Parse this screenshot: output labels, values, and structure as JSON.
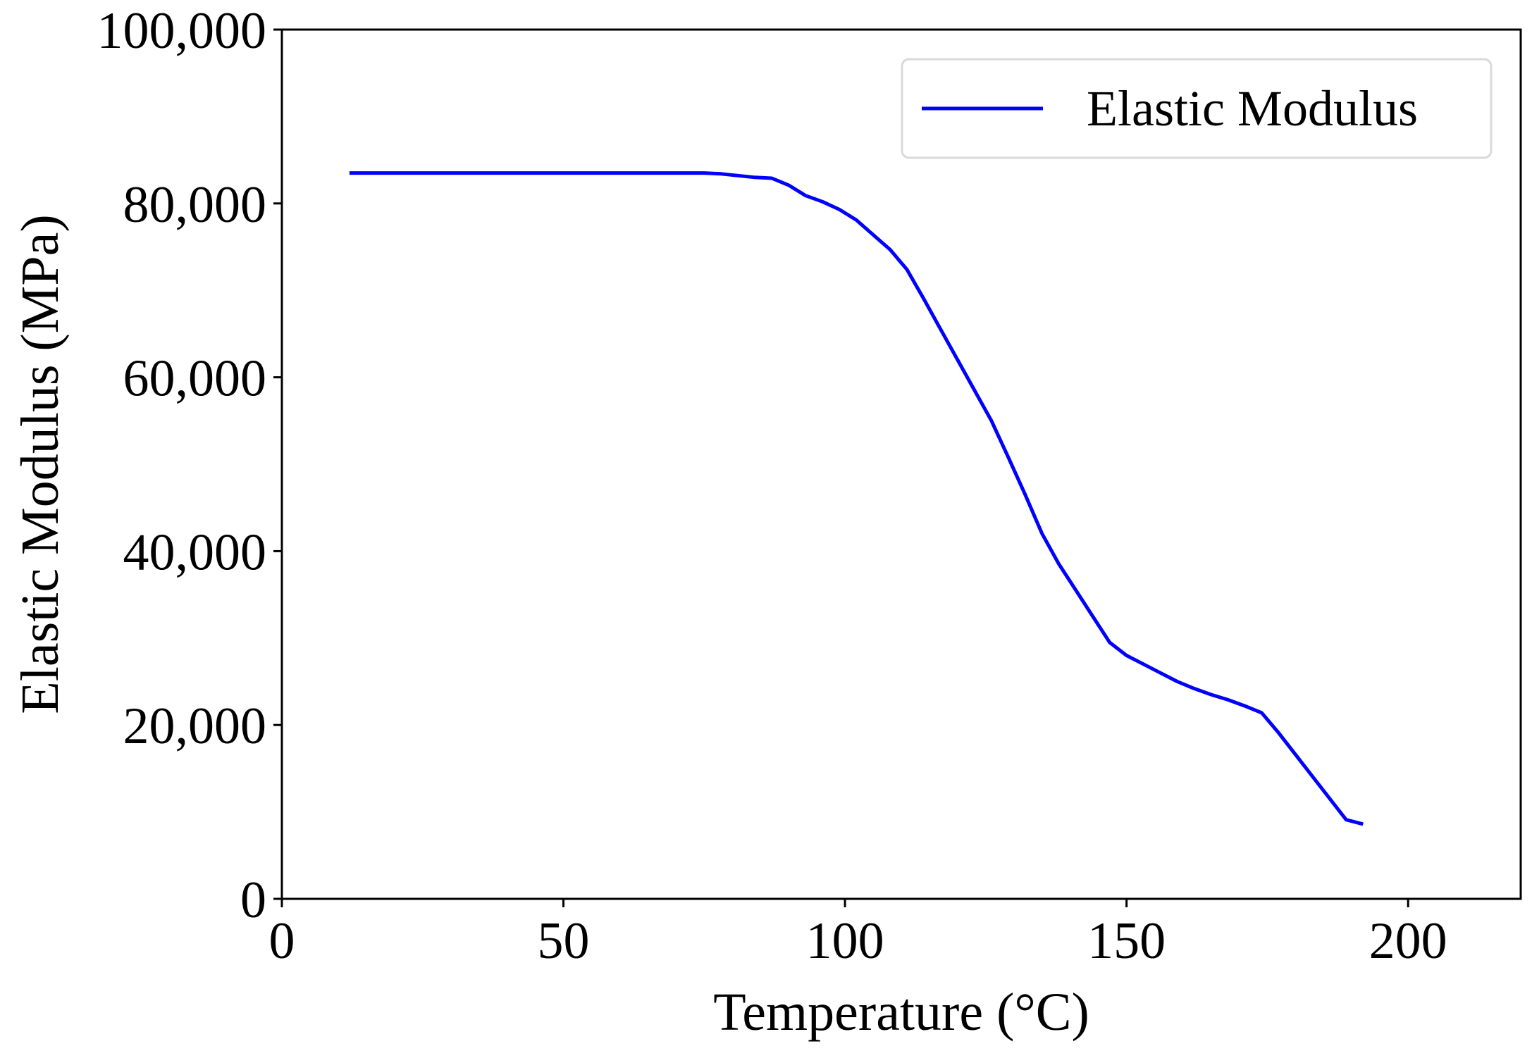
{
  "chart_data": {
    "type": "line",
    "title": "",
    "xlabel": "Temperature (°C)",
    "ylabel": "Elastic Modulus (MPa)",
    "xlim": [
      0,
      220
    ],
    "ylim": [
      0,
      100000
    ],
    "xticks": [
      0,
      50,
      100,
      150,
      200
    ],
    "xtick_labels": [
      "0",
      "50",
      "100",
      "150",
      "200"
    ],
    "yticks": [
      0,
      20000,
      40000,
      60000,
      80000,
      100000
    ],
    "ytick_labels": [
      "0",
      "20,000",
      "40,000",
      "60,000",
      "80,000",
      "100,000"
    ],
    "grid": false,
    "legend": {
      "position": "top-right",
      "entries": [
        "Elastic Modulus"
      ]
    },
    "series": [
      {
        "name": "Elastic Modulus",
        "color": "#0000ff",
        "x": [
          12,
          20,
          40,
          60,
          75,
          78,
          81,
          84,
          87,
          90,
          93,
          96,
          99,
          102,
          105,
          108,
          111,
          114,
          117,
          120,
          123,
          126,
          129,
          132,
          135,
          138,
          141,
          144,
          147,
          150,
          153,
          156,
          159,
          162,
          165,
          168,
          171,
          174,
          177,
          180,
          183,
          186,
          189,
          192
        ],
        "y": [
          83500,
          83500,
          83500,
          83500,
          83500,
          83400,
          83200,
          83000,
          82900,
          82100,
          80900,
          80200,
          79300,
          78100,
          76400,
          74700,
          72400,
          69000,
          65500,
          62000,
          58500,
          55000,
          50800,
          46500,
          42000,
          38500,
          35500,
          32500,
          29500,
          28000,
          27000,
          26000,
          25000,
          24200,
          23500,
          22900,
          22200,
          21400,
          19100,
          16600,
          14100,
          11600,
          9100,
          8600
        ]
      }
    ]
  }
}
